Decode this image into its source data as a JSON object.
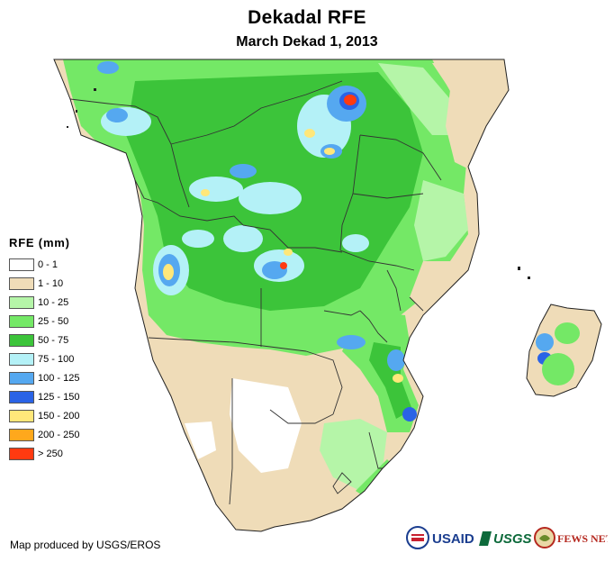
{
  "title": "Dekadal RFE",
  "subtitle": "March Dekad 1, 2013",
  "legend": {
    "title": "RFE (mm)",
    "items": [
      {
        "label": "0 - 1",
        "color": "#ffffff"
      },
      {
        "label": "1 - 10",
        "color": "#efdcb8"
      },
      {
        "label": "10 - 25",
        "color": "#b5f5a8"
      },
      {
        "label": "25 - 50",
        "color": "#74e866"
      },
      {
        "label": "50 - 75",
        "color": "#3cc43a"
      },
      {
        "label": "75 - 100",
        "color": "#b4f1f7"
      },
      {
        "label": "100 - 125",
        "color": "#55a8f0"
      },
      {
        "label": "125 - 150",
        "color": "#2a63e6"
      },
      {
        "label": "150 - 200",
        "color": "#ffe77a"
      },
      {
        "label": "200 - 250",
        "color": "#ffa81c"
      },
      {
        "label": "> 250",
        "color": "#ff3a10"
      }
    ]
  },
  "credit": "Map produced by USGS/EROS",
  "logos": {
    "usaid": "USAID",
    "usgs": "USGS",
    "fews": "FEWS NET"
  }
}
